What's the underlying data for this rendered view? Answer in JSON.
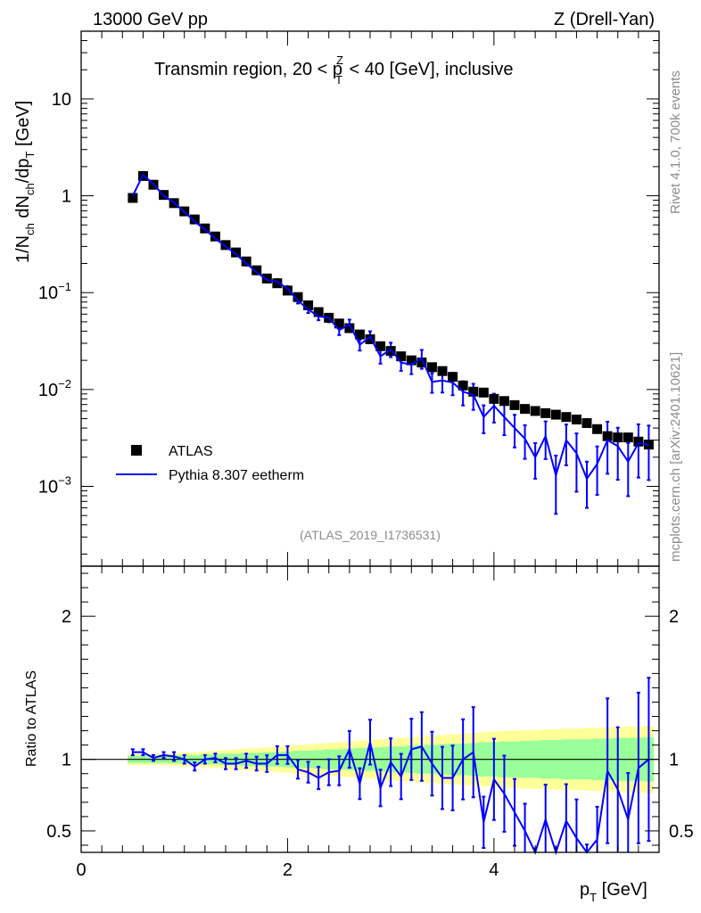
{
  "header": {
    "left": "13000 GeV pp",
    "right": "Z (Drell-Yan)",
    "side_top": "Rivet 4.1.0,  700k events",
    "side_bottom": "mcplots.cern.ch [arXiv:2401.10621]"
  },
  "chart_data": [
    {
      "type": "scatter",
      "panel": "main",
      "title": "Transmin region, 20 < p_T^Z < 40 [GeV], inclusive",
      "title_parts": {
        "pre": "Transmin region, 20 < p",
        "sub": "T",
        "sup": "Z",
        "post": " < 40 [GeV], inclusive"
      },
      "ylabel": "1/N_ch dN_ch/dp_T [GeV]",
      "ylabel_parts": {
        "a": "1/N",
        "b": "ch",
        "c": " dN",
        "d": "ch",
        "e": "/dp",
        "f": "T",
        "g": " [GeV]"
      },
      "yscale": "log",
      "ylim": [
        0.00015,
        50
      ],
      "xlim": [
        0,
        5.6
      ],
      "yticks": [
        {
          "value": 10,
          "label": "10",
          "exp": ""
        },
        {
          "value": 1,
          "label": "1",
          "exp": ""
        },
        {
          "value": 0.1,
          "label": "10",
          "exp": "−1"
        },
        {
          "value": 0.01,
          "label": "10",
          "exp": "−2"
        },
        {
          "value": 0.001,
          "label": "10",
          "exp": "−3"
        }
      ],
      "annotation": "(ATLAS_2019_I1736531)",
      "legend": {
        "position": "lower-left",
        "entries": [
          "ATLAS",
          "Pythia 8.307 eetherm"
        ]
      },
      "x": [
        0.5,
        0.6,
        0.7,
        0.8,
        0.9,
        1.0,
        1.1,
        1.2,
        1.3,
        1.4,
        1.5,
        1.6,
        1.7,
        1.8,
        1.9,
        2.0,
        2.1,
        2.2,
        2.3,
        2.4,
        2.5,
        2.6,
        2.7,
        2.8,
        2.9,
        3.0,
        3.1,
        3.2,
        3.3,
        3.4,
        3.5,
        3.6,
        3.7,
        3.8,
        3.9,
        4.0,
        4.1,
        4.2,
        4.3,
        4.4,
        4.5,
        4.6,
        4.7,
        4.8,
        4.9,
        5.0,
        5.1,
        5.2,
        5.3,
        5.4,
        5.5
      ],
      "series": [
        {
          "name": "ATLAS",
          "marker": "square",
          "color": "#000000",
          "values": [
            0.95,
            1.6,
            1.3,
            1.02,
            0.84,
            0.69,
            0.57,
            0.46,
            0.38,
            0.31,
            0.26,
            0.21,
            0.17,
            0.14,
            0.125,
            0.105,
            0.09,
            0.074,
            0.063,
            0.055,
            0.048,
            0.043,
            0.037,
            0.033,
            0.028,
            0.025,
            0.022,
            0.02,
            0.019,
            0.017,
            0.0155,
            0.0135,
            0.011,
            0.0095,
            0.0093,
            0.008,
            0.0076,
            0.0069,
            0.0063,
            0.006,
            0.0057,
            0.0055,
            0.0052,
            0.0049,
            0.0045,
            0.0039,
            0.0033,
            0.0032,
            0.0032,
            0.0029,
            0.0027
          ]
        },
        {
          "name": "Pythia 8.307 eetherm",
          "color": "#0000ff",
          "values": [
            1.0,
            1.65,
            1.32,
            1.0,
            0.85,
            0.68,
            0.54,
            0.45,
            0.36,
            0.3,
            0.25,
            0.2,
            0.163,
            0.135,
            0.13,
            0.11,
            0.083,
            0.067,
            0.057,
            0.055,
            0.041,
            0.047,
            0.029,
            0.035,
            0.022,
            0.026,
            0.019,
            0.018,
            0.021,
            0.012,
            0.0124,
            0.0118,
            0.0095,
            0.0088,
            0.0052,
            0.0068,
            0.0052,
            0.004,
            0.0031,
            0.002,
            0.0033,
            0.0013,
            0.003,
            0.0022,
            0.0012,
            0.0017,
            0.003,
            0.0026,
            0.0018,
            0.0028,
            0.0027
          ],
          "rel_err": [
            0.02,
            0.02,
            0.02,
            0.02,
            0.03,
            0.03,
            0.03,
            0.03,
            0.03,
            0.04,
            0.04,
            0.05,
            0.05,
            0.06,
            0.06,
            0.06,
            0.07,
            0.08,
            0.09,
            0.1,
            0.11,
            0.12,
            0.13,
            0.14,
            0.16,
            0.17,
            0.18,
            0.2,
            0.22,
            0.23,
            0.25,
            0.26,
            0.28,
            0.3,
            0.32,
            0.33,
            0.35,
            0.37,
            0.38,
            0.4,
            0.42,
            0.6,
            0.45,
            0.6,
            0.5,
            0.52,
            0.55,
            0.55,
            0.56,
            0.56,
            0.57
          ]
        }
      ]
    },
    {
      "type": "line",
      "panel": "ratio",
      "ylabel": "Ratio to ATLAS",
      "xlabel": "p_T [GeV]",
      "xlabel_parts": {
        "a": "p",
        "b": "T",
        "c": " [GeV]"
      },
      "ylim": [
        0.35,
        2.35
      ],
      "xlim": [
        0,
        5.6
      ],
      "yticks": [
        {
          "value": 0.5,
          "label": "0.5"
        },
        {
          "value": 1,
          "label": "1"
        },
        {
          "value": 2,
          "label": "2"
        }
      ],
      "xticks": [
        {
          "value": 0,
          "label": "0"
        },
        {
          "value": 2,
          "label": "2"
        },
        {
          "value": 4,
          "label": "4"
        }
      ],
      "reference_line": 1,
      "bands": [
        {
          "name": "total uncertainty",
          "color": "#ffff99",
          "half_width": [
            0.04,
            0.04,
            0.04,
            0.04,
            0.045,
            0.05,
            0.05,
            0.055,
            0.06,
            0.065,
            0.07,
            0.075,
            0.08,
            0.085,
            0.09,
            0.095,
            0.1,
            0.105,
            0.11,
            0.115,
            0.12,
            0.125,
            0.13,
            0.135,
            0.14,
            0.145,
            0.15,
            0.155,
            0.16,
            0.165,
            0.17,
            0.175,
            0.18,
            0.185,
            0.19,
            0.195,
            0.2,
            0.2,
            0.205,
            0.205,
            0.21,
            0.21,
            0.215,
            0.215,
            0.22,
            0.22,
            0.225,
            0.225,
            0.23,
            0.23,
            0.235
          ]
        },
        {
          "name": "stat uncertainty",
          "color": "#99ff99",
          "half_width": [
            0.025,
            0.025,
            0.025,
            0.025,
            0.03,
            0.03,
            0.03,
            0.035,
            0.035,
            0.04,
            0.04,
            0.045,
            0.045,
            0.05,
            0.05,
            0.055,
            0.06,
            0.06,
            0.065,
            0.07,
            0.07,
            0.075,
            0.08,
            0.08,
            0.085,
            0.09,
            0.09,
            0.095,
            0.1,
            0.1,
            0.105,
            0.11,
            0.11,
            0.115,
            0.12,
            0.12,
            0.125,
            0.125,
            0.13,
            0.13,
            0.135,
            0.135,
            0.14,
            0.14,
            0.14,
            0.145,
            0.145,
            0.15,
            0.15,
            0.15,
            0.155
          ]
        }
      ],
      "series": [
        {
          "name": "Pythia 8.307 eetherm / ATLAS",
          "color": "#0000ff",
          "values": [
            1.05,
            1.05,
            1.01,
            1.03,
            1.02,
            1.0,
            0.95,
            1.0,
            1.01,
            0.97,
            0.97,
            0.99,
            0.97,
            0.97,
            1.03,
            1.03,
            0.93,
            0.91,
            0.87,
            0.91,
            0.92,
            1.07,
            0.83,
            1.12,
            0.8,
            0.98,
            0.88,
            1.07,
            1.09,
            0.97,
            0.87,
            0.87,
            1.0,
            1.05,
            0.56,
            0.86,
            0.76,
            0.63,
            0.5,
            0.27,
            0.58,
            0.24,
            0.57,
            0.45,
            0.27,
            0.44,
            0.92,
            0.79,
            0.58,
            0.94,
            1.0
          ]
        }
      ]
    }
  ]
}
